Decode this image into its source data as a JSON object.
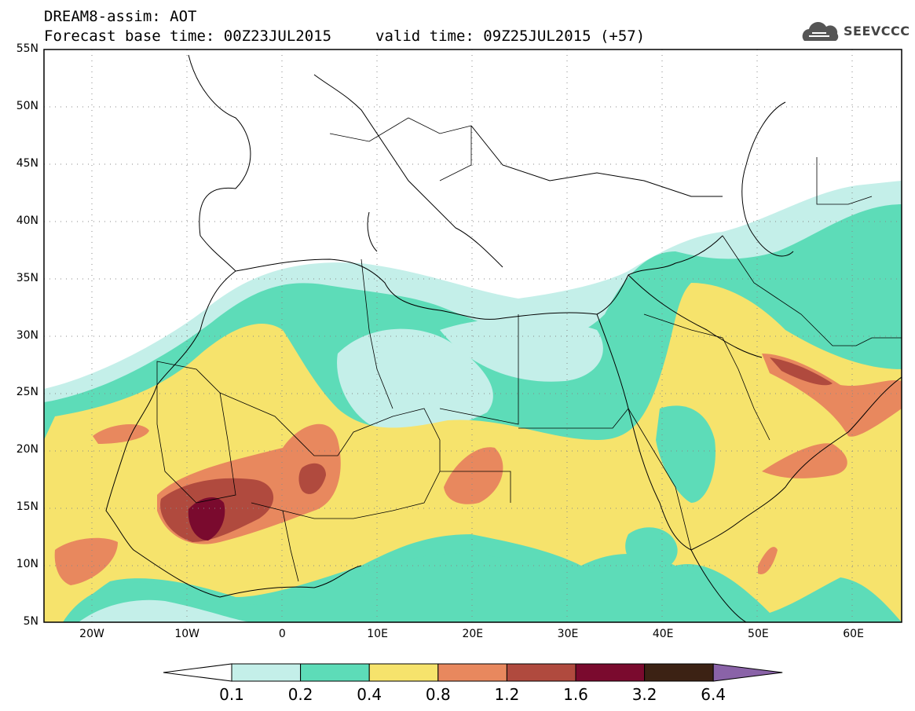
{
  "header": {
    "title": "DREAM8-assim: AOT",
    "base_time": "Forecast base time: 00Z23JUL2015",
    "valid_time": "valid time: 09Z25JUL2015 (+57)"
  },
  "logo": {
    "text": "SEEVCCC",
    "icon": "cloud-logo-icon"
  },
  "axes": {
    "lat_labels": [
      "55N",
      "50N",
      "45N",
      "40N",
      "35N",
      "30N",
      "25N",
      "20N",
      "15N",
      "10N",
      "5N"
    ],
    "lon_labels": [
      "20W",
      "10W",
      "0",
      "10E",
      "20E",
      "30E",
      "40E",
      "50E",
      "60E"
    ]
  },
  "colorbar": {
    "labels": [
      "0.1",
      "0.2",
      "0.4",
      "0.8",
      "1.2",
      "1.6",
      "3.2",
      "6.4"
    ],
    "colors": [
      "#ffffff",
      "#c4efe9",
      "#5ddcb8",
      "#f6e36c",
      "#e8885e",
      "#b04a3e",
      "#7a0a2e",
      "#3c2214",
      "#8a63a8"
    ]
  }
}
